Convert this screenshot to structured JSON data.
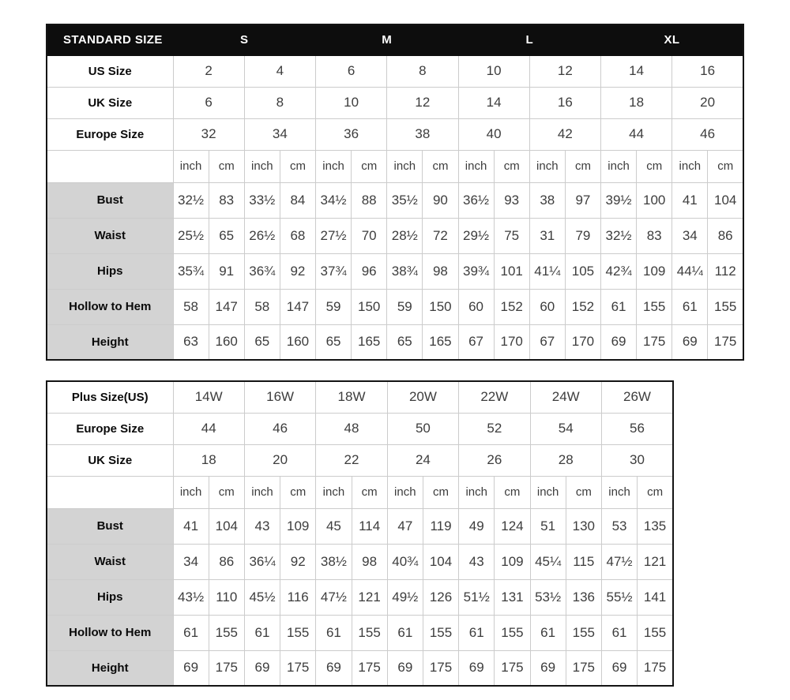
{
  "standard_table": {
    "header": {
      "label": "STANDARD SIZE",
      "groups": [
        "S",
        "M",
        "L",
        "XL"
      ]
    },
    "size_rows": [
      {
        "label": "US Size",
        "values": [
          "2",
          "4",
          "6",
          "8",
          "10",
          "12",
          "14",
          "16"
        ]
      },
      {
        "label": "UK Size",
        "values": [
          "6",
          "8",
          "10",
          "12",
          "14",
          "16",
          "18",
          "20"
        ]
      },
      {
        "label": "Europe Size",
        "values": [
          "32",
          "34",
          "36",
          "38",
          "40",
          "42",
          "44",
          "46"
        ]
      }
    ],
    "unit_row": [
      "inch",
      "cm",
      "inch",
      "cm",
      "inch",
      "cm",
      "inch",
      "cm",
      "inch",
      "cm",
      "inch",
      "cm",
      "inch",
      "cm",
      "inch",
      "cm"
    ],
    "measure_rows": [
      {
        "label": "Bust",
        "values": [
          "32½",
          "83",
          "33½",
          "84",
          "34½",
          "88",
          "35½",
          "90",
          "36½",
          "93",
          "38",
          "97",
          "39½",
          "100",
          "41",
          "104"
        ]
      },
      {
        "label": "Waist",
        "values": [
          "25½",
          "65",
          "26½",
          "68",
          "27½",
          "70",
          "28½",
          "72",
          "29½",
          "75",
          "31",
          "79",
          "32½",
          "83",
          "34",
          "86"
        ]
      },
      {
        "label": "Hips",
        "values": [
          "35¾",
          "91",
          "36¾",
          "92",
          "37¾",
          "96",
          "38¾",
          "98",
          "39¾",
          "101",
          "41¼",
          "105",
          "42¾",
          "109",
          "44¼",
          "112"
        ]
      },
      {
        "label": "Hollow to Hem",
        "values": [
          "58",
          "147",
          "58",
          "147",
          "59",
          "150",
          "59",
          "150",
          "60",
          "152",
          "60",
          "152",
          "61",
          "155",
          "61",
          "155"
        ]
      },
      {
        "label": "Height",
        "values": [
          "63",
          "160",
          "65",
          "160",
          "65",
          "165",
          "65",
          "165",
          "67",
          "170",
          "67",
          "170",
          "69",
          "175",
          "69",
          "175"
        ]
      }
    ]
  },
  "plus_table": {
    "size_rows": [
      {
        "label": "Plus Size(US)",
        "values": [
          "14W",
          "16W",
          "18W",
          "20W",
          "22W",
          "24W",
          "26W"
        ]
      },
      {
        "label": "Europe Size",
        "values": [
          "44",
          "46",
          "48",
          "50",
          "52",
          "54",
          "56"
        ]
      },
      {
        "label": "UK Size",
        "values": [
          "18",
          "20",
          "22",
          "24",
          "26",
          "28",
          "30"
        ]
      }
    ],
    "unit_row": [
      "inch",
      "cm",
      "inch",
      "cm",
      "inch",
      "cm",
      "inch",
      "cm",
      "inch",
      "cm",
      "inch",
      "cm",
      "inch",
      "cm"
    ],
    "measure_rows": [
      {
        "label": "Bust",
        "values": [
          "41",
          "104",
          "43",
          "109",
          "45",
          "114",
          "47",
          "119",
          "49",
          "124",
          "51",
          "130",
          "53",
          "135"
        ]
      },
      {
        "label": "Waist",
        "values": [
          "34",
          "86",
          "36¼",
          "92",
          "38½",
          "98",
          "40¾",
          "104",
          "43",
          "109",
          "45¼",
          "115",
          "47½",
          "121"
        ]
      },
      {
        "label": "Hips",
        "values": [
          "43½",
          "110",
          "45½",
          "116",
          "47½",
          "121",
          "49½",
          "126",
          "51½",
          "131",
          "53½",
          "136",
          "55½",
          "141"
        ]
      },
      {
        "label": "Hollow to Hem",
        "values": [
          "61",
          "155",
          "61",
          "155",
          "61",
          "155",
          "61",
          "155",
          "61",
          "155",
          "61",
          "155",
          "61",
          "155"
        ]
      },
      {
        "label": "Height",
        "values": [
          "69",
          "175",
          "69",
          "175",
          "69",
          "175",
          "69",
          "175",
          "69",
          "175",
          "69",
          "175",
          "69",
          "175"
        ]
      }
    ]
  },
  "colors": {
    "page_bg": "#ffffff",
    "header_bg": "#0d0d0d",
    "header_text": "#ffffff",
    "label_bg": "#d3d3d3",
    "label_text": "#0a0a0a",
    "grid": "#cccccc",
    "outer_border": "#141414",
    "text": "#3d3d3d"
  }
}
